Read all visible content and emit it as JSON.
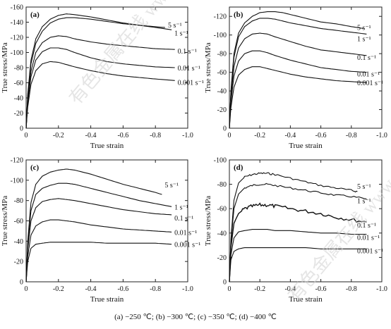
{
  "caption": "(a) −250 ℃; (b) −300 ℃; (c) −350 ℃; (d) −400 ℃",
  "watermark": "有色金属在线 www.cnnmol.com",
  "chart_data": [
    {
      "type": "line",
      "panel_label": "(a)",
      "xlabel": "True strain",
      "ylabel": "True stress/MPa",
      "xlim": [
        0,
        -1.0
      ],
      "ylim": [
        0,
        -160
      ],
      "xticks": [
        "0",
        "-0.2",
        "-0.4",
        "-0.6",
        "-0.8",
        "-1.0"
      ],
      "yticks": [
        "0",
        "-20",
        "-40",
        "-60",
        "-80",
        "-100",
        "-120",
        "-140",
        "-160"
      ],
      "series": [
        {
          "name": "5 s⁻¹",
          "x": [
            0,
            -0.01,
            -0.03,
            -0.06,
            -0.1,
            -0.15,
            -0.2,
            -0.25,
            -0.3,
            -0.4,
            -0.5,
            -0.6,
            -0.7,
            -0.8,
            -0.86
          ],
          "y": [
            0,
            -45,
            -90,
            -118,
            -134,
            -144,
            -149,
            -151,
            -150,
            -147,
            -143,
            -139,
            -136,
            -134,
            -133
          ]
        },
        {
          "name": "1 s⁻¹",
          "x": [
            0,
            -0.01,
            -0.03,
            -0.06,
            -0.1,
            -0.15,
            -0.2,
            -0.25,
            -0.3,
            -0.4,
            -0.5,
            -0.6,
            -0.7,
            -0.8,
            -0.9
          ],
          "y": [
            0,
            -42,
            -85,
            -112,
            -128,
            -139,
            -144,
            -146,
            -146,
            -144,
            -141,
            -138,
            -136,
            -133,
            -130
          ]
        },
        {
          "name": "0.1 s⁻¹",
          "x": [
            0,
            -0.01,
            -0.03,
            -0.06,
            -0.1,
            -0.15,
            -0.2,
            -0.25,
            -0.3,
            -0.4,
            -0.5,
            -0.6,
            -0.7,
            -0.8,
            -0.92
          ],
          "y": [
            0,
            -38,
            -75,
            -100,
            -113,
            -120,
            -122,
            -121,
            -118,
            -114,
            -111,
            -109,
            -107,
            -105,
            -104
          ]
        },
        {
          "name": "0.01 s⁻¹",
          "x": [
            0,
            -0.01,
            -0.03,
            -0.06,
            -0.1,
            -0.15,
            -0.2,
            -0.25,
            -0.3,
            -0.4,
            -0.5,
            -0.6,
            -0.7,
            -0.8,
            -0.92
          ],
          "y": [
            0,
            -33,
            -68,
            -90,
            -101,
            -106,
            -106,
            -104,
            -100,
            -93,
            -88,
            -85,
            -83,
            -81,
            -80
          ]
        },
        {
          "name": "0.001 s⁻¹",
          "x": [
            0,
            -0.01,
            -0.03,
            -0.06,
            -0.1,
            -0.15,
            -0.2,
            -0.25,
            -0.3,
            -0.4,
            -0.5,
            -0.6,
            -0.7,
            -0.8,
            -0.92
          ],
          "y": [
            0,
            -28,
            -58,
            -76,
            -85,
            -88,
            -87,
            -84,
            -81,
            -76,
            -72,
            -69,
            -67,
            -65,
            -63
          ]
        }
      ]
    },
    {
      "type": "line",
      "panel_label": "(b)",
      "xlabel": "True strain",
      "ylabel": "True stress/MPa",
      "xlim": [
        0,
        -1.0
      ],
      "ylim": [
        0,
        -130
      ],
      "xticks": [
        "0",
        "-0.2",
        "-0.4",
        "-0.6",
        "-0.8",
        "-1.0"
      ],
      "yticks": [
        "0",
        "-20",
        "-40",
        "-60",
        "-80",
        "-100",
        "-120"
      ],
      "series": [
        {
          "name": "5 s⁻¹",
          "x": [
            0,
            -0.01,
            -0.03,
            -0.06,
            -0.1,
            -0.15,
            -0.2,
            -0.25,
            -0.3,
            -0.35,
            -0.4,
            -0.5,
            -0.6,
            -0.7,
            -0.8,
            -0.88
          ],
          "y": [
            0,
            -40,
            -80,
            -102,
            -113,
            -120,
            -124,
            -125,
            -125,
            -124,
            -122,
            -118,
            -114,
            -112,
            -109,
            -107
          ]
        },
        {
          "name": "1 s⁻¹",
          "x": [
            0,
            -0.01,
            -0.03,
            -0.06,
            -0.1,
            -0.15,
            -0.2,
            -0.25,
            -0.3,
            -0.35,
            -0.4,
            -0.5,
            -0.6,
            -0.7,
            -0.8,
            -0.9
          ],
          "y": [
            0,
            -38,
            -76,
            -98,
            -109,
            -115,
            -118,
            -118,
            -117,
            -115,
            -113,
            -110,
            -107,
            -105,
            -103,
            -101
          ]
        },
        {
          "name": "0.1 s⁻¹",
          "x": [
            0,
            -0.01,
            -0.03,
            -0.06,
            -0.1,
            -0.15,
            -0.2,
            -0.25,
            -0.3,
            -0.4,
            -0.5,
            -0.6,
            -0.7,
            -0.8,
            -0.9
          ],
          "y": [
            0,
            -33,
            -66,
            -86,
            -96,
            -101,
            -102,
            -101,
            -98,
            -93,
            -88,
            -84,
            -82,
            -80,
            -78
          ]
        },
        {
          "name": "0.01 s⁻¹",
          "x": [
            0,
            -0.01,
            -0.03,
            -0.06,
            -0.1,
            -0.15,
            -0.2,
            -0.25,
            -0.3,
            -0.4,
            -0.5,
            -0.6,
            -0.7,
            -0.8,
            -0.9
          ],
          "y": [
            0,
            -28,
            -56,
            -72,
            -80,
            -83,
            -83,
            -81,
            -78,
            -73,
            -69,
            -65,
            -63,
            -61,
            -60
          ]
        },
        {
          "name": "0.001 s⁻¹",
          "x": [
            0,
            -0.01,
            -0.03,
            -0.06,
            -0.1,
            -0.15,
            -0.2,
            -0.25,
            -0.3,
            -0.4,
            -0.5,
            -0.6,
            -0.7,
            -0.8,
            -0.9
          ],
          "y": [
            0,
            -22,
            -44,
            -57,
            -63,
            -66,
            -66,
            -64,
            -62,
            -58,
            -55,
            -53,
            -51,
            -50,
            -49
          ]
        }
      ]
    },
    {
      "type": "line",
      "panel_label": "(c)",
      "xlabel": "True strain",
      "ylabel": "True stress/MPa",
      "xlim": [
        0,
        -1.0
      ],
      "ylim": [
        0,
        -120
      ],
      "xticks": [
        "0",
        "-0.2",
        "-0.4",
        "-0.6",
        "-0.8",
        "-1.0"
      ],
      "yticks": [
        "0",
        "-20",
        "-40",
        "-60",
        "-80",
        "-100",
        "-120"
      ],
      "series": [
        {
          "name": "5 s⁻¹",
          "x": [
            0,
            -0.01,
            -0.03,
            -0.06,
            -0.1,
            -0.15,
            -0.2,
            -0.25,
            -0.3,
            -0.35,
            -0.4,
            -0.5,
            -0.6,
            -0.7,
            -0.8,
            -0.84
          ],
          "y": [
            0,
            -40,
            -78,
            -96,
            -104,
            -108,
            -110,
            -111,
            -110,
            -108,
            -106,
            -101,
            -96,
            -92,
            -88,
            -86
          ]
        },
        {
          "name": "1 s⁻¹",
          "x": [
            0,
            -0.01,
            -0.03,
            -0.06,
            -0.1,
            -0.15,
            -0.2,
            -0.25,
            -0.3,
            -0.35,
            -0.4,
            -0.5,
            -0.6,
            -0.7,
            -0.8,
            -0.9
          ],
          "y": [
            0,
            -36,
            -70,
            -86,
            -92,
            -95,
            -97,
            -97,
            -96,
            -94,
            -92,
            -88,
            -84,
            -80,
            -77,
            -74
          ]
        },
        {
          "name": "0.1 s⁻¹",
          "x": [
            0,
            -0.01,
            -0.03,
            -0.06,
            -0.1,
            -0.15,
            -0.2,
            -0.25,
            -0.3,
            -0.4,
            -0.5,
            -0.6,
            -0.7,
            -0.8,
            -0.9
          ],
          "y": [
            0,
            -32,
            -60,
            -73,
            -79,
            -81,
            -82,
            -81,
            -80,
            -77,
            -74,
            -71,
            -69,
            -67,
            -66
          ]
        },
        {
          "name": "0.01 s⁻¹",
          "x": [
            0,
            -0.01,
            -0.03,
            -0.06,
            -0.1,
            -0.15,
            -0.2,
            -0.25,
            -0.3,
            -0.4,
            -0.5,
            -0.6,
            -0.7,
            -0.8,
            -0.9
          ],
          "y": [
            0,
            -25,
            -46,
            -55,
            -59,
            -61,
            -61,
            -60,
            -59,
            -56,
            -54,
            -52,
            -51,
            -50,
            -49
          ]
        },
        {
          "name": "0.001 s⁻¹",
          "x": [
            0,
            -0.01,
            -0.03,
            -0.06,
            -0.1,
            -0.15,
            -0.2,
            -0.3,
            -0.4,
            -0.5,
            -0.6,
            -0.7,
            -0.8,
            -0.9
          ],
          "y": [
            0,
            -20,
            -33,
            -37,
            -38,
            -39,
            -39,
            -39,
            -39,
            -38,
            -38,
            -38,
            -38,
            -37
          ]
        }
      ]
    },
    {
      "type": "line",
      "panel_label": "(d)",
      "xlabel": "True strain",
      "ylabel": "True stress/MPa",
      "xlim": [
        0,
        -1.0
      ],
      "ylim": [
        0,
        -100
      ],
      "xticks": [
        "0",
        "-0.2",
        "-0.4",
        "-0.6",
        "-0.8",
        "-1.0"
      ],
      "yticks": [
        "0",
        "-20",
        "-40",
        "-60",
        "-80",
        "-100"
      ],
      "series": [
        {
          "name": "5 s⁻¹",
          "x": [
            0,
            -0.01,
            -0.03,
            -0.06,
            -0.1,
            -0.15,
            -0.2,
            -0.25,
            -0.3,
            -0.4,
            -0.5,
            -0.6,
            -0.7,
            -0.8,
            -0.84
          ],
          "y": [
            0,
            -35,
            -67,
            -81,
            -86,
            -88,
            -89,
            -89,
            -88,
            -85,
            -82,
            -79,
            -77,
            -75,
            -74
          ]
        },
        {
          "name": "1 s⁻¹",
          "x": [
            0,
            -0.01,
            -0.03,
            -0.06,
            -0.1,
            -0.15,
            -0.2,
            -0.25,
            -0.3,
            -0.4,
            -0.5,
            -0.6,
            -0.7,
            -0.8,
            -0.9
          ],
          "y": [
            0,
            -32,
            -60,
            -72,
            -77,
            -79,
            -80,
            -80,
            -79,
            -77,
            -75,
            -73,
            -71,
            -70,
            -68
          ]
        },
        {
          "name": "0.1 s⁻¹",
          "x": [
            0,
            -0.01,
            -0.03,
            -0.06,
            -0.1,
            -0.15,
            -0.2,
            -0.25,
            -0.3,
            -0.4,
            -0.5,
            -0.6,
            -0.7,
            -0.8,
            -0.9
          ],
          "y": [
            0,
            -28,
            -48,
            -56,
            -60,
            -62,
            -63,
            -63,
            -62,
            -60,
            -58,
            -56,
            -53,
            -51,
            -49
          ]
        },
        {
          "name": "0.01 s⁻¹",
          "x": [
            0,
            -0.01,
            -0.03,
            -0.06,
            -0.1,
            -0.15,
            -0.2,
            -0.25,
            -0.3,
            -0.4,
            -0.5,
            -0.6,
            -0.7,
            -0.8,
            -0.9
          ],
          "y": [
            0,
            -22,
            -36,
            -41,
            -42,
            -43,
            -43,
            -43,
            -42,
            -42,
            -41,
            -40,
            -40,
            -39,
            -39
          ]
        },
        {
          "name": "0.001 s⁻¹",
          "x": [
            0,
            -0.01,
            -0.03,
            -0.06,
            -0.1,
            -0.15,
            -0.2,
            -0.3,
            -0.4,
            -0.5,
            -0.6,
            -0.7,
            -0.8,
            -0.9
          ],
          "y": [
            0,
            -18,
            -25,
            -27,
            -28,
            -28,
            -28,
            -28,
            -28,
            -28,
            -27,
            -27,
            -27,
            -27
          ]
        }
      ]
    }
  ]
}
